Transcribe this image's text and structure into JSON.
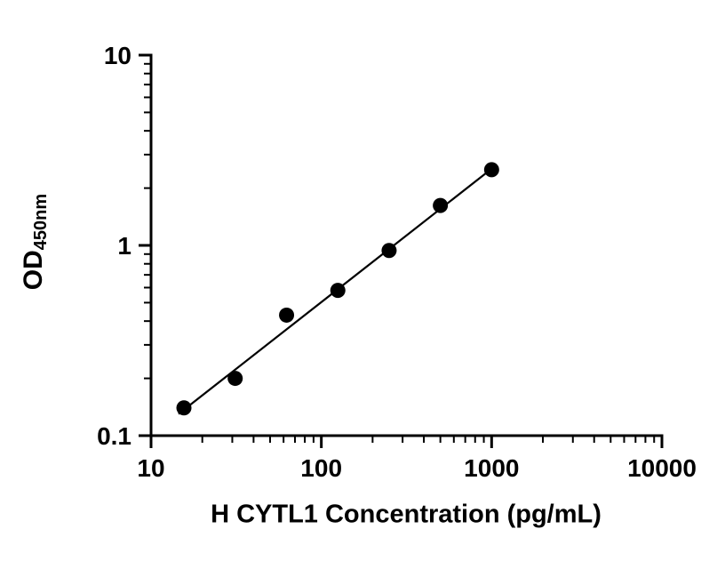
{
  "chart_data": {
    "type": "scatter",
    "title": "",
    "xlabel": "H CYTL1 Concentration (pg/mL)",
    "ylabel_main": "OD",
    "ylabel_sub": "450nm",
    "x_scale": "log",
    "y_scale": "log",
    "xlim": [
      10,
      10000
    ],
    "ylim": [
      0.1,
      10
    ],
    "x_ticks": [
      10,
      100,
      1000,
      10000
    ],
    "x_tick_labels": [
      "10",
      "100",
      "1000",
      "10000"
    ],
    "y_ticks": [
      0.1,
      1,
      10
    ],
    "y_tick_labels": [
      "0.1",
      "1",
      "10"
    ],
    "grid": false,
    "legend": "none",
    "marker_color": "#000000",
    "line_color": "#000000",
    "background": "#ffffff",
    "points": [
      {
        "x": 15.6,
        "y": 0.14
      },
      {
        "x": 31.2,
        "y": 0.2
      },
      {
        "x": 62.5,
        "y": 0.43
      },
      {
        "x": 125,
        "y": 0.58
      },
      {
        "x": 250,
        "y": 0.94
      },
      {
        "x": 500,
        "y": 1.62
      },
      {
        "x": 1000,
        "y": 2.5
      }
    ],
    "trendline": {
      "x1": 14.5,
      "y1": 0.13,
      "x2": 1030,
      "y2": 2.58
    }
  }
}
